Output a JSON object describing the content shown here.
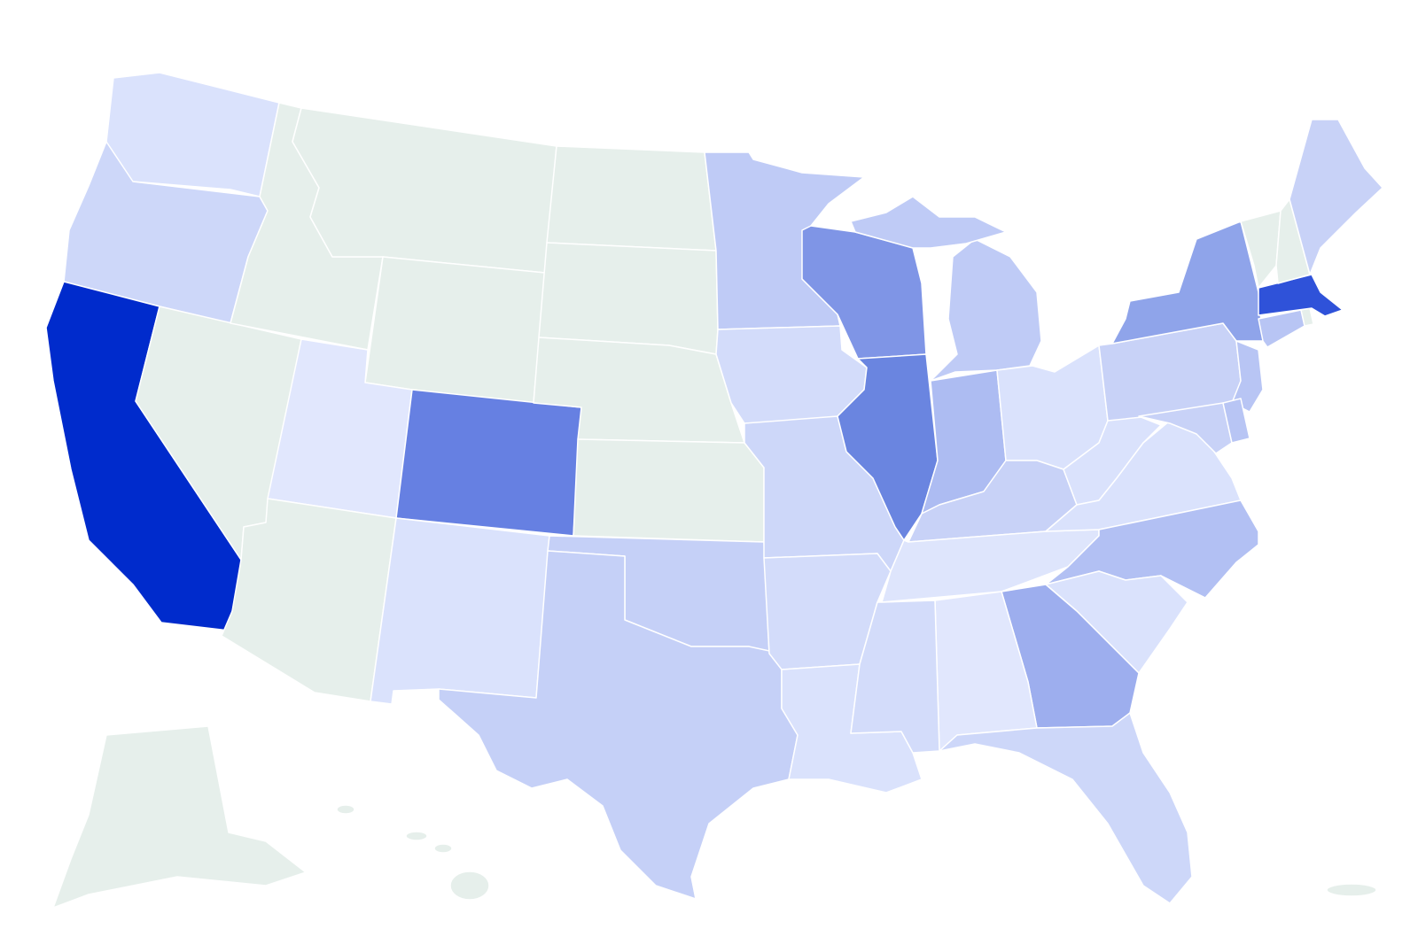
{
  "map": {
    "type": "choropleth",
    "background": "#ffffff",
    "border_color": "#ffffff",
    "no_data_color": "#e6efeb",
    "regions": [
      {
        "id": "WA",
        "fill": "#dae2fc"
      },
      {
        "id": "OR",
        "fill": "#cdd7f9"
      },
      {
        "id": "CA",
        "fill": "#002bcc"
      },
      {
        "id": "NV",
        "fill": "#e6efeb"
      },
      {
        "id": "ID",
        "fill": "#e6efeb"
      },
      {
        "id": "MT",
        "fill": "#e6efeb"
      },
      {
        "id": "WY",
        "fill": "#e6efeb"
      },
      {
        "id": "UT",
        "fill": "#e1e7fd"
      },
      {
        "id": "CO",
        "fill": "#6680e2"
      },
      {
        "id": "AZ",
        "fill": "#e6efeb"
      },
      {
        "id": "NM",
        "fill": "#dae2fc"
      },
      {
        "id": "ND",
        "fill": "#e6efeb"
      },
      {
        "id": "SD",
        "fill": "#e6efeb"
      },
      {
        "id": "NE",
        "fill": "#e6efeb"
      },
      {
        "id": "KS",
        "fill": "#e6efeb"
      },
      {
        "id": "OK",
        "fill": "#c5d0f7"
      },
      {
        "id": "TX",
        "fill": "#c5d0f7"
      },
      {
        "id": "MN",
        "fill": "#bfcbf6"
      },
      {
        "id": "IA",
        "fill": "#d3dcfa"
      },
      {
        "id": "MO",
        "fill": "#cdd7f9"
      },
      {
        "id": "AR",
        "fill": "#d3dcfa"
      },
      {
        "id": "LA",
        "fill": "#dae2fc"
      },
      {
        "id": "WI",
        "fill": "#7f95e6"
      },
      {
        "id": "IL",
        "fill": "#6a85e0"
      },
      {
        "id": "MI",
        "fill": "#bfcbf6"
      },
      {
        "id": "IN",
        "fill": "#adbcf2"
      },
      {
        "id": "OH",
        "fill": "#dae2fc"
      },
      {
        "id": "KY",
        "fill": "#c8d2f7"
      },
      {
        "id": "TN",
        "fill": "#dee5fc"
      },
      {
        "id": "WV",
        "fill": "#dae2fc"
      },
      {
        "id": "VA",
        "fill": "#dae2fc"
      },
      {
        "id": "NC",
        "fill": "#b2c0f3"
      },
      {
        "id": "SC",
        "fill": "#dae2fc"
      },
      {
        "id": "GA",
        "fill": "#9daeee"
      },
      {
        "id": "AL",
        "fill": "#e1e7fd"
      },
      {
        "id": "MS",
        "fill": "#d3dcfa"
      },
      {
        "id": "FL",
        "fill": "#cdd7f9"
      },
      {
        "id": "PA",
        "fill": "#c8d2f7"
      },
      {
        "id": "NY",
        "fill": "#8fa4ea"
      },
      {
        "id": "NJ",
        "fill": "#b8c5f4"
      },
      {
        "id": "MD",
        "fill": "#c8d2f7"
      },
      {
        "id": "DE",
        "fill": "#b8c5f4"
      },
      {
        "id": "CT",
        "fill": "#b8c5f4"
      },
      {
        "id": "RI",
        "fill": "#e6efeb"
      },
      {
        "id": "MA",
        "fill": "#2f52d9"
      },
      {
        "id": "VT",
        "fill": "#e6efeb"
      },
      {
        "id": "NH",
        "fill": "#e6efeb"
      },
      {
        "id": "ME",
        "fill": "#c8d2f7"
      },
      {
        "id": "AK",
        "fill": "#e6efeb"
      },
      {
        "id": "HI",
        "fill": "#e6efeb"
      },
      {
        "id": "PR",
        "fill": "#e6efeb"
      }
    ]
  }
}
